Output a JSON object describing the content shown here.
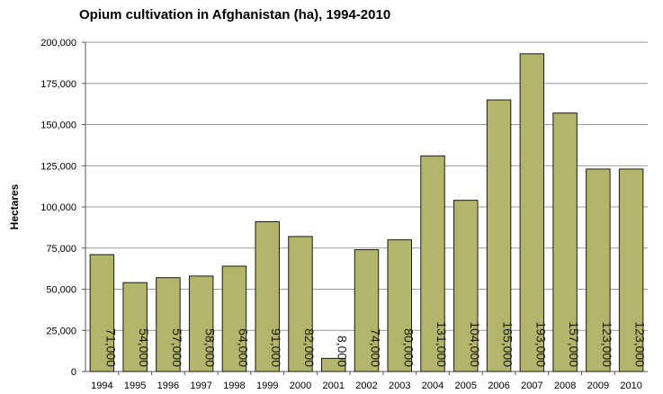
{
  "chart_data": {
    "type": "bar",
    "title": "Opium cultivation in Afghanistan (ha), 1994-2010",
    "xlabel": "",
    "ylabel": "Hectares",
    "ylim": [
      0,
      200000
    ],
    "yticks": [
      "0",
      "25,000",
      "50,000",
      "75,000",
      "100,000",
      "125,000",
      "150,000",
      "175,000",
      "200,000"
    ],
    "grid": true,
    "categories": [
      "1994",
      "1995",
      "1996",
      "1997",
      "1998",
      "1999",
      "2000",
      "2001",
      "2002",
      "2003",
      "2004",
      "2005",
      "2006",
      "2007",
      "2008",
      "2009",
      "2010"
    ],
    "values": [
      71000,
      54000,
      57000,
      58000,
      64000,
      91000,
      82000,
      8000,
      74000,
      80000,
      131000,
      104000,
      165000,
      193000,
      157000,
      123000,
      123000
    ],
    "data_labels": [
      "71,000",
      "54,000",
      "57,000",
      "58,000",
      "64,000",
      "91,000",
      "82,000",
      "8,000",
      "74,000",
      "80,000",
      "131,000",
      "104,000",
      "165,000",
      "193,000",
      "157,000",
      "123,000",
      "123,000"
    ],
    "bar_color": "#b3b56a",
    "bar_edge_color": "#1a1a1a",
    "grid_color": "#9a9a9a"
  }
}
